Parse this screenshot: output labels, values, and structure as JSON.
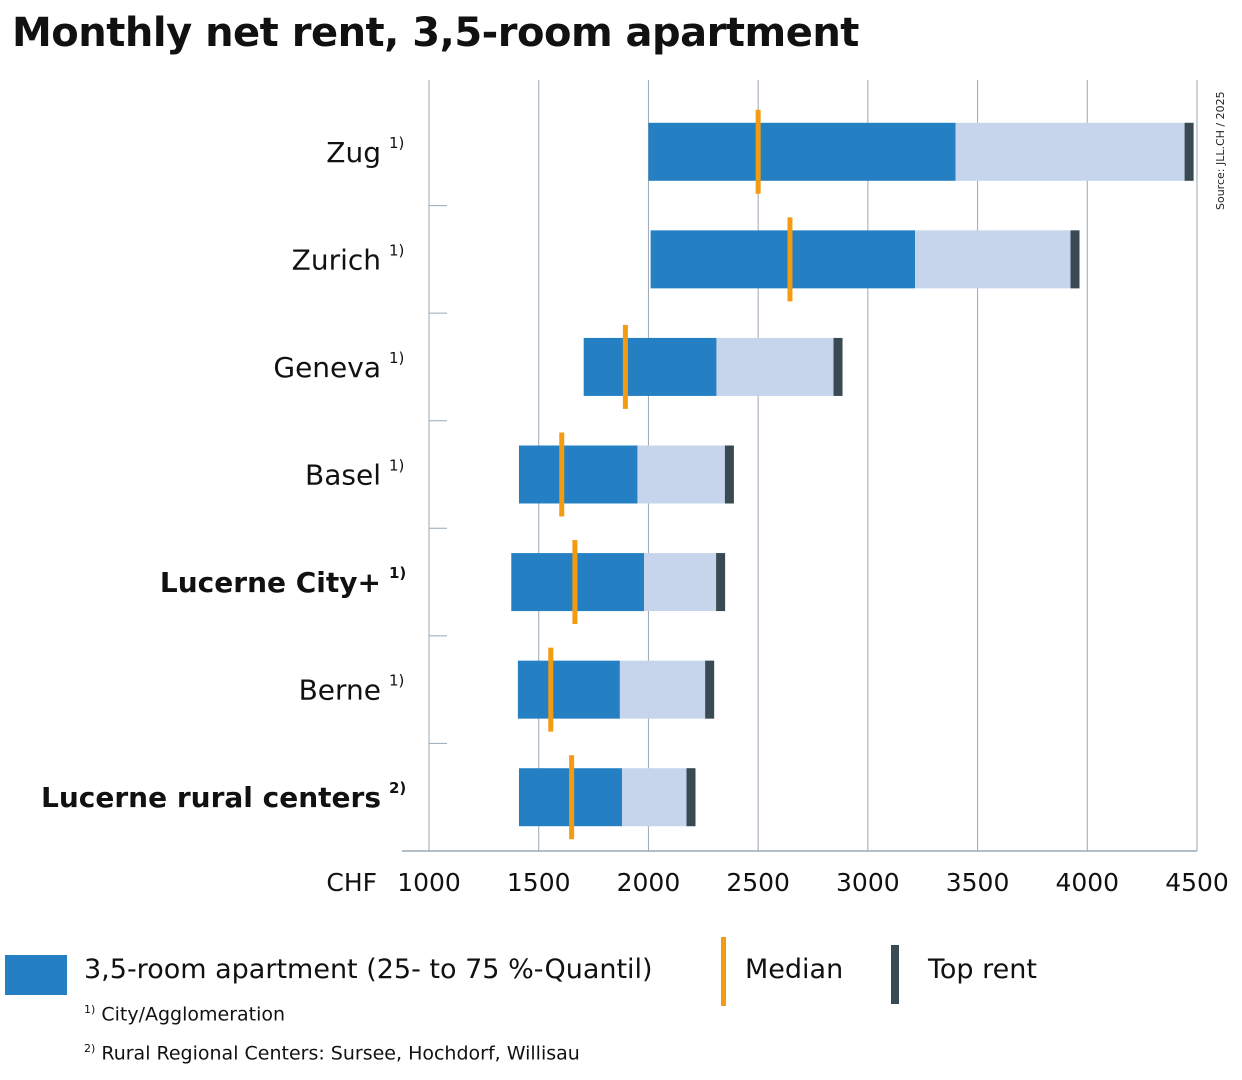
{
  "chart_data": {
    "type": "bar",
    "title": "Monthly net rent, 3,5-room apartment",
    "x_unit_label": "CHF",
    "xlim": [
      1000,
      4500
    ],
    "xticks": [
      1000,
      1500,
      2000,
      2500,
      3000,
      3500,
      4000,
      4500
    ],
    "grid": true,
    "source": "Source: JLL.CH / 2025",
    "categories": [
      {
        "name": "Zug",
        "footnote": "1)",
        "bold": false,
        "q25": 2000,
        "median": 2500,
        "q75": 3400,
        "top": 4480
      },
      {
        "name": "Zurich",
        "footnote": "1)",
        "bold": false,
        "q25": 2010,
        "median": 2645,
        "q75": 3215,
        "top": 3960
      },
      {
        "name": "Geneva",
        "footnote": "1)",
        "bold": false,
        "q25": 1705,
        "median": 1895,
        "q75": 2310,
        "top": 2880
      },
      {
        "name": "Basel",
        "footnote": "1)",
        "bold": false,
        "q25": 1410,
        "median": 1605,
        "q75": 1950,
        "top": 2385
      },
      {
        "name": "Lucerne City+",
        "footnote": "1)",
        "bold": true,
        "q25": 1375,
        "median": 1665,
        "q75": 1980,
        "top": 2345
      },
      {
        "name": "Berne",
        "footnote": "1)",
        "bold": false,
        "q25": 1405,
        "median": 1555,
        "q75": 1870,
        "top": 2295
      },
      {
        "name": "Lucerne rural centers",
        "footnote": "2)",
        "bold": true,
        "q25": 1410,
        "median": 1650,
        "q75": 1880,
        "top": 2210
      }
    ],
    "colors": {
      "iqr": "#2580c3",
      "upper": "#c6d5ec",
      "median": "#f39c12",
      "top": "#3a4a52",
      "grid": "#9aa8b4"
    }
  },
  "legend": {
    "range_label": "3,5-room apartment (25- to 75 %-Quantil)",
    "median_label": "Median",
    "top_label": "Top rent"
  },
  "footnotes": {
    "note1_mark": "1)",
    "note1_text": "City/Agglomeration",
    "note2_mark": "2)",
    "note2_text": "Rural Regional Centers: Sursee, Hochdorf, Willisau"
  }
}
